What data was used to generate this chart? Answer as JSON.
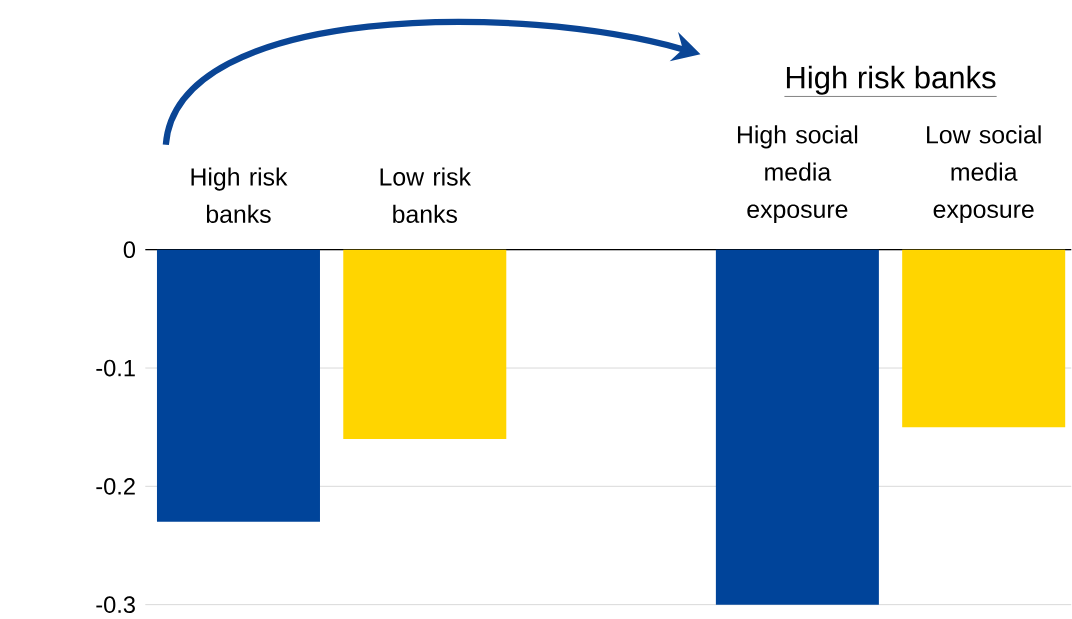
{
  "chart_data": {
    "type": "bar",
    "categories": [
      "High risk banks",
      "Low risk banks",
      null,
      "High social media exposure",
      "Low social media exposure"
    ],
    "values": [
      -0.23,
      -0.16,
      null,
      -0.3,
      -0.15
    ],
    "colors": [
      "#00449a",
      "#ffd500",
      null,
      "#00449a",
      "#ffd500"
    ],
    "ylim": [
      -0.3,
      0
    ],
    "yticks": [
      0,
      -0.1,
      -0.2,
      -0.3
    ],
    "grid": "y",
    "annotations": [
      "High risk banks"
    ]
  }
}
